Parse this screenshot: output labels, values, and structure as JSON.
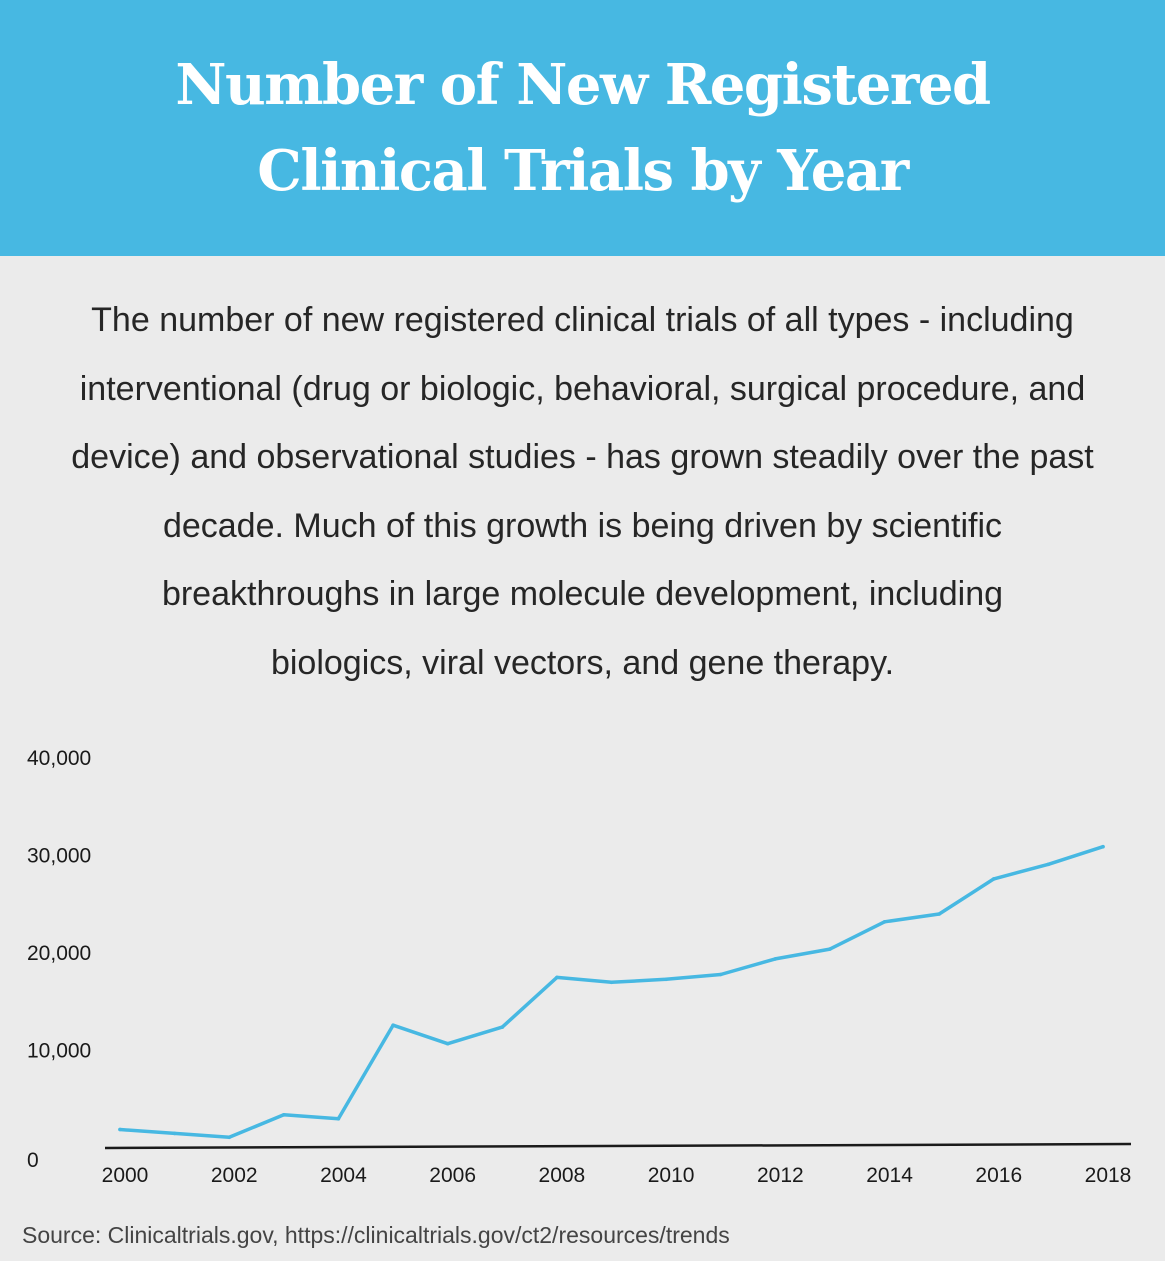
{
  "header": {
    "title_line1": "Number of New Registered",
    "title_line2": "Clinical Trials by Year",
    "background_color": "#47b8e2"
  },
  "description": {
    "lines": [
      "The number of new registered clinical trials of all types - including",
      "interventional (drug or biologic, behavioral, surgical procedure, and",
      "device) and observational studies - has grown steadily over the past",
      "decade. Much of this growth is being driven by scientific",
      "breakthroughs in large molecule development, including",
      "biologics, viral vectors, and gene therapy."
    ]
  },
  "chart_data": {
    "type": "line",
    "title": "",
    "xlabel": "",
    "ylabel": "",
    "x": [
      2000,
      2001,
      2002,
      2003,
      2004,
      2005,
      2006,
      2007,
      2008,
      2009,
      2010,
      2011,
      2012,
      2013,
      2014,
      2015,
      2016,
      2017,
      2018
    ],
    "series": [
      {
        "values": [
          1900,
          1500,
          1100,
          3400,
          3000,
          12600,
          10700,
          12400,
          17500,
          17000,
          17300,
          17800,
          19400,
          20400,
          23200,
          24000,
          27600,
          29100,
          30900
        ],
        "color": "#47b8e2"
      }
    ],
    "x_tick_labels": [
      "2000",
      "2002",
      "2004",
      "2006",
      "2008",
      "2010",
      "2012",
      "2014",
      "2016",
      "2018"
    ],
    "y_tick_labels": [
      "0",
      "10,000",
      "20,000",
      "30,000",
      "40,000"
    ],
    "xlim": [
      2000,
      2018
    ],
    "ylim": [
      0,
      40000
    ],
    "grid": false,
    "axis_color": "#1a1a1a"
  },
  "footer": {
    "source": "Source: Clinicaltrials.gov, https://clinicaltrials.gov/ct2/resources/trends"
  }
}
